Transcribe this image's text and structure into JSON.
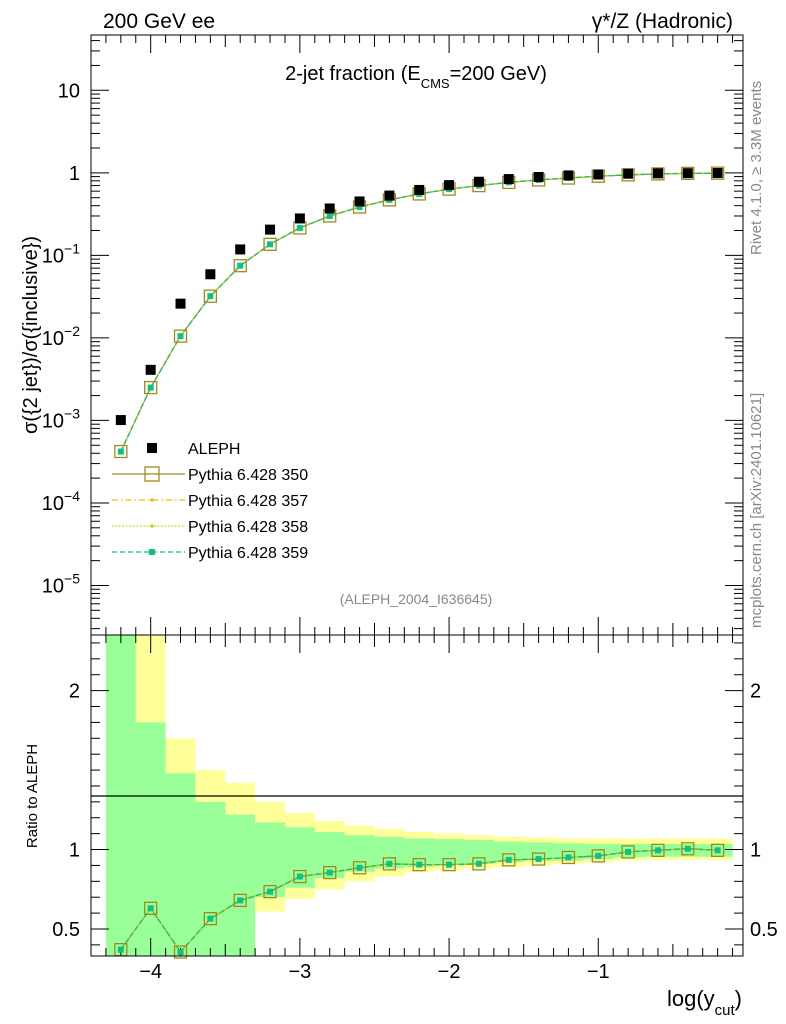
{
  "header": {
    "left": "200 GeV ee",
    "right": "γ*/Z (Hadronic)"
  },
  "side_notes": {
    "rivet": "Rivet 4.1.0, ≥ 3.3M events",
    "mcplots": "mcplots.cern.ch [arXiv:2401.10621]"
  },
  "colors": {
    "aleph": "#000000",
    "p350": "#a08a1e",
    "p357": "#f0c000",
    "p358": "#c8d000",
    "p359": "#10c080",
    "band_outer": "#ffff99",
    "band_inner": "#99ff99"
  },
  "chart_data": [
    {
      "type": "scatter",
      "scale": "log",
      "title": "2-jet fraction (E",
      "title_sub": "CMS",
      "title_end": "=200 GeV)",
      "ylabel": "σ({2 jet})/σ({inclusive})",
      "analysis_label": "(ALEPH_2004_I636645)",
      "xlim": [
        -4.4,
        -0.03
      ],
      "ylim_exp": [
        -5.6,
        1.67
      ],
      "ytick_labels": [
        {
          "exp": 1,
          "base": "10",
          "sup": ""
        },
        {
          "exp": 0,
          "base": "1",
          "sup": ""
        },
        {
          "exp": -1,
          "base": "10",
          "sup": "−1"
        },
        {
          "exp": -2,
          "base": "10",
          "sup": "−2"
        },
        {
          "exp": -3,
          "base": "10",
          "sup": "−3"
        },
        {
          "exp": -4,
          "base": "10",
          "sup": "−4"
        },
        {
          "exp": -5,
          "base": "10",
          "sup": "−5"
        }
      ],
      "x": [
        -4.2,
        -4.0,
        -3.8,
        -3.6,
        -3.4,
        -3.2,
        -3.0,
        -2.8,
        -2.6,
        -2.4,
        -2.2,
        -2.0,
        -1.8,
        -1.6,
        -1.4,
        -1.2,
        -1.0,
        -0.8,
        -0.6,
        -0.4,
        -0.2
      ],
      "series": [
        {
          "name": "ALEPH",
          "values": [
            0.00101,
            0.0041,
            0.026,
            0.059,
            0.118,
            0.205,
            0.28,
            0.37,
            0.45,
            0.53,
            0.62,
            0.71,
            0.78,
            0.84,
            0.89,
            0.93,
            0.955,
            0.975,
            0.985,
            0.99,
            0.995
          ]
        },
        {
          "name": "Pythia 6.428 350",
          "values": [
            0.00042,
            0.0025,
            0.0105,
            0.032,
            0.075,
            0.136,
            0.215,
            0.3,
            0.385,
            0.47,
            0.555,
            0.635,
            0.7,
            0.765,
            0.82,
            0.865,
            0.91,
            0.945,
            0.97,
            0.985,
            0.99
          ]
        },
        {
          "name": "Pythia 6.428 357",
          "values": [
            0.00042,
            0.0025,
            0.0105,
            0.032,
            0.075,
            0.136,
            0.215,
            0.3,
            0.385,
            0.47,
            0.555,
            0.635,
            0.7,
            0.765,
            0.82,
            0.865,
            0.91,
            0.945,
            0.97,
            0.985,
            0.99
          ]
        },
        {
          "name": "Pythia 6.428 358",
          "values": [
            0.00042,
            0.0025,
            0.0105,
            0.032,
            0.075,
            0.136,
            0.215,
            0.3,
            0.385,
            0.47,
            0.555,
            0.635,
            0.7,
            0.765,
            0.82,
            0.865,
            0.91,
            0.945,
            0.97,
            0.985,
            0.99
          ]
        },
        {
          "name": "Pythia 6.428 359",
          "values": [
            0.00042,
            0.0025,
            0.0105,
            0.032,
            0.075,
            0.136,
            0.215,
            0.3,
            0.385,
            0.47,
            0.555,
            0.635,
            0.7,
            0.765,
            0.82,
            0.865,
            0.91,
            0.945,
            0.97,
            0.985,
            0.99
          ]
        }
      ],
      "legend": [
        "ALEPH",
        "Pythia 6.428 350",
        "Pythia 6.428 357",
        "Pythia 6.428 358",
        "Pythia 6.428 359"
      ],
      "legend_position": "bottom-left"
    },
    {
      "type": "line",
      "ylabel": "Ratio to ALEPH",
      "xlabel": "log(y",
      "xlabel_sub": "cut",
      "xlabel_end": ")",
      "xlim": [
        -4.4,
        -0.03
      ],
      "ylim": [
        0.33,
        2.35
      ],
      "xtick_labels": [
        {
          "v": -4,
          "label": "−4"
        },
        {
          "v": -3,
          "label": "−3"
        },
        {
          "v": -2,
          "label": "−2"
        },
        {
          "v": -1,
          "label": "−1"
        }
      ],
      "ytick_labels": [
        {
          "v": 2,
          "label": "2"
        },
        {
          "v": 1,
          "label": "1"
        },
        {
          "v": 0.5,
          "label": "0.5"
        }
      ],
      "x": [
        -4.2,
        -4.0,
        -3.8,
        -3.6,
        -3.4,
        -3.2,
        -3.0,
        -2.8,
        -2.6,
        -2.4,
        -2.2,
        -2.0,
        -1.8,
        -1.6,
        -1.4,
        -1.2,
        -1.0,
        -0.8,
        -0.6,
        -0.4,
        -0.2
      ],
      "ratio": [
        0.37,
        0.63,
        0.355,
        0.565,
        0.68,
        0.735,
        0.83,
        0.855,
        0.885,
        0.91,
        0.905,
        0.905,
        0.91,
        0.935,
        0.94,
        0.95,
        0.96,
        0.985,
        0.995,
        1.005,
        0.995
      ],
      "bins": [
        -4.3,
        -4.1,
        -3.9,
        -3.7,
        -3.5,
        -3.3,
        -3.1,
        -2.9,
        -2.7,
        -2.5,
        -2.3,
        -2.1,
        -1.9,
        -1.7,
        -1.5,
        -1.3,
        -1.1,
        -0.9,
        -0.7,
        -0.5,
        -0.3,
        -0.1
      ],
      "band_inner": [
        [
          0.33,
          2.35
        ],
        [
          0.33,
          1.8
        ],
        [
          0.33,
          1.48
        ],
        [
          0.33,
          1.3
        ],
        [
          0.33,
          1.22
        ],
        [
          0.7,
          1.17
        ],
        [
          0.76,
          1.14
        ],
        [
          0.82,
          1.11
        ],
        [
          0.86,
          1.09
        ],
        [
          0.88,
          1.08
        ],
        [
          0.89,
          1.07
        ],
        [
          0.9,
          1.065
        ],
        [
          0.91,
          1.06
        ],
        [
          0.92,
          1.05
        ],
        [
          0.93,
          1.045
        ],
        [
          0.93,
          1.04
        ],
        [
          0.94,
          1.035
        ],
        [
          0.95,
          1.035
        ],
        [
          0.955,
          1.035
        ],
        [
          0.955,
          1.035
        ],
        [
          0.955,
          1.035
        ]
      ],
      "band_outer": [
        [
          0.33,
          2.35
        ],
        [
          0.33,
          2.35
        ],
        [
          0.33,
          1.7
        ],
        [
          0.33,
          1.5
        ],
        [
          0.42,
          1.42
        ],
        [
          0.61,
          1.3
        ],
        [
          0.69,
          1.23
        ],
        [
          0.75,
          1.18
        ],
        [
          0.8,
          1.15
        ],
        [
          0.83,
          1.13
        ],
        [
          0.86,
          1.11
        ],
        [
          0.87,
          1.1
        ],
        [
          0.88,
          1.09
        ],
        [
          0.89,
          1.08
        ],
        [
          0.9,
          1.075
        ],
        [
          0.91,
          1.07
        ],
        [
          0.92,
          1.07
        ],
        [
          0.93,
          1.07
        ],
        [
          0.935,
          1.07
        ],
        [
          0.935,
          1.07
        ],
        [
          0.935,
          1.07
        ]
      ]
    }
  ]
}
